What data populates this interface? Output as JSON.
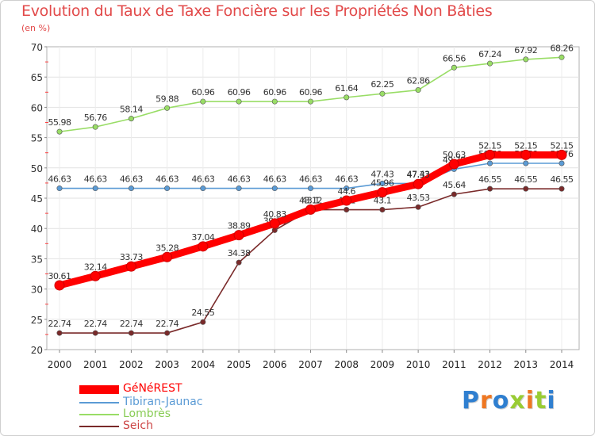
{
  "title": "Evolution du Taux de Taxe Foncière sur les Propriétés Non Bâties",
  "unit": "(en %)",
  "brand": "Proxiti",
  "chart_data": {
    "type": "line",
    "title": "Evolution du Taux de Taxe Foncière sur les Propriétés Non Bâties",
    "ylabel": "(en %)",
    "xlabel": "",
    "ylim": [
      20,
      70
    ],
    "yticks": [
      20,
      25,
      30,
      35,
      40,
      45,
      50,
      55,
      60,
      65,
      70
    ],
    "x": [
      "2000",
      "2001",
      "2002",
      "2003",
      "2004",
      "2005",
      "2006",
      "2007",
      "2008",
      "2009",
      "2010",
      "2011",
      "2012",
      "2013",
      "2014"
    ],
    "legend_position": "bottom-left",
    "series": [
      {
        "name": "GéNéREST",
        "color": "#ff0000",
        "values": [
          30.61,
          32.14,
          33.73,
          35.28,
          37.04,
          38.89,
          40.83,
          43.12,
          44.6,
          45.96,
          47.33,
          50.63,
          52.15,
          52.15,
          52.15
        ],
        "labels": [
          "30.61",
          "32.14",
          "33.73",
          "35.28",
          "37.04",
          "38.89",
          "40.83",
          "43.12",
          "44.6",
          "45.96",
          "47.33",
          "50.63",
          "52.15",
          "52.15",
          "52.15"
        ]
      },
      {
        "name": "Tibiran-Jaunac",
        "color": "#5b9bd5",
        "values": [
          46.63,
          46.63,
          46.63,
          46.63,
          46.63,
          46.63,
          46.63,
          46.63,
          46.63,
          47.43,
          47.43,
          49.79,
          50.76,
          50.76,
          50.76
        ],
        "labels": [
          "46.63",
          "46.63",
          "46.63",
          "46.63",
          "46.63",
          "46.63",
          "46.63",
          "46.63",
          "46.63",
          "47.43",
          "47.43",
          "49.79",
          "50.76",
          "50.76",
          "50.76"
        ]
      },
      {
        "name": "Lombrès",
        "color": "#99dd66",
        "values": [
          55.98,
          56.76,
          58.14,
          59.88,
          60.96,
          60.96,
          60.96,
          60.96,
          61.64,
          62.25,
          62.86,
          66.56,
          67.24,
          67.92,
          68.26
        ],
        "labels": [
          "55.98",
          "56.76",
          "58.14",
          "59.88",
          "60.96",
          "60.96",
          "60.96",
          "60.96",
          "61.64",
          "62.25",
          "62.86",
          "66.56",
          "67.24",
          "67.92",
          "68.26"
        ]
      },
      {
        "name": "Seich",
        "color": "#7a2a2a",
        "values": [
          22.74,
          22.74,
          22.74,
          22.74,
          24.55,
          34.38,
          39.71,
          43.1,
          43.1,
          43.1,
          43.53,
          45.64,
          46.55,
          46.55,
          46.55
        ],
        "labels": [
          "22.74",
          "22.74",
          "22.74",
          "22.74",
          "24.55",
          "34.38",
          "39.71",
          "43.1",
          "43.1",
          "43.1",
          "43.53",
          "45.64",
          "46.55",
          "46.55",
          "46.55"
        ]
      }
    ]
  }
}
